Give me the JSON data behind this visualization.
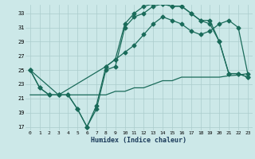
{
  "xlabel": "Humidex (Indice chaleur)",
  "bg_color": "#cce8e8",
  "grid_color": "#aacccc",
  "line_color": "#1a6b5a",
  "xlim": [
    -0.5,
    23.5
  ],
  "ylim": [
    16.5,
    34.2
  ],
  "yticks": [
    17,
    19,
    21,
    23,
    25,
    27,
    29,
    31,
    33
  ],
  "xticks": [
    0,
    1,
    2,
    3,
    4,
    5,
    6,
    7,
    8,
    9,
    10,
    11,
    12,
    13,
    14,
    15,
    16,
    17,
    18,
    19,
    20,
    21,
    22,
    23
  ],
  "s1_x": [
    0,
    1,
    2,
    3,
    4,
    5,
    6,
    7,
    8,
    9,
    10,
    11,
    12,
    13,
    14,
    15,
    16,
    17,
    18,
    19,
    20,
    21,
    22,
    23
  ],
  "s1_y": [
    25,
    22.5,
    21.5,
    21.5,
    21.5,
    19.5,
    17.0,
    19.5,
    25.0,
    25.5,
    31.0,
    32.5,
    33.0,
    34.0,
    34.3,
    34.0,
    34.0,
    33.0,
    32.0,
    31.5,
    29.0,
    24.5,
    24.5,
    24.0
  ],
  "s2_x": [
    0,
    1,
    2,
    3,
    4,
    5,
    6,
    7,
    8,
    9,
    10,
    11,
    12,
    13,
    14,
    15,
    16,
    17,
    18,
    19,
    20,
    21,
    22,
    23
  ],
  "s2_y": [
    25,
    22.5,
    21.5,
    21.5,
    21.5,
    19.5,
    17.0,
    20.0,
    25.5,
    26.5,
    31.5,
    33.0,
    34.0,
    34.3,
    34.3,
    34.0,
    34.0,
    33.0,
    32.0,
    32.0,
    29.0,
    24.5,
    24.5,
    24.0
  ],
  "s3_x": [
    0,
    3,
    8,
    9,
    10,
    11,
    12,
    13,
    14,
    15,
    16,
    17,
    18,
    19,
    20,
    21,
    22,
    23
  ],
  "s3_y": [
    25,
    21.5,
    25.5,
    26.5,
    27.5,
    28.5,
    30.0,
    31.5,
    32.5,
    32.0,
    31.5,
    30.5,
    30.0,
    30.5,
    31.5,
    32.0,
    31.0,
    24.5
  ],
  "s4_x": [
    0,
    1,
    2,
    3,
    4,
    5,
    6,
    7,
    8,
    9,
    10,
    11,
    12,
    13,
    14,
    15,
    16,
    17,
    18,
    19,
    20,
    21,
    22,
    23
  ],
  "s4_y": [
    21.5,
    21.5,
    21.5,
    21.5,
    21.5,
    21.5,
    21.5,
    21.5,
    21.5,
    22.0,
    22.0,
    22.5,
    22.5,
    23.0,
    23.5,
    23.5,
    24.0,
    24.0,
    24.0,
    24.0,
    24.0,
    24.2,
    24.3,
    24.5
  ]
}
